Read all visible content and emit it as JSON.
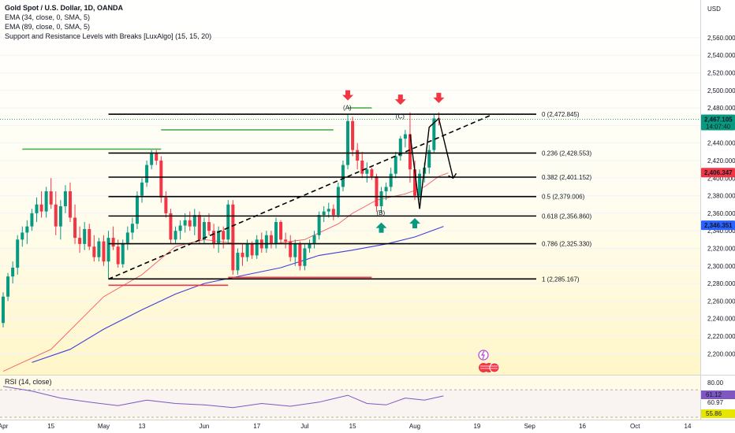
{
  "legend": {
    "title": "Gold Spot / U.S. Dollar, 1D, OANDA",
    "ema1": "EMA (34, close, 0, SMA, 5)",
    "ema2": "EMA (89, close, 0, SMA, 5)",
    "sr": "Support and Resistance Levels with Breaks [LuxAlgo] (15, 15, 20)"
  },
  "rsi_title": "RSI (14, close)",
  "currency": "USD",
  "colors": {
    "up": "#089981",
    "down": "#f23645",
    "ema_fast": "#f23645",
    "ema_slow": "#3f3fd8",
    "support": "#f23645",
    "resistance": "#4caf50",
    "rsi": "#7e57c2"
  },
  "chart_data": {
    "type": "candlestick",
    "symbol": "XAUUSD",
    "timeframe": "1D",
    "price_ticks": [
      "2,560.000",
      "2,540.000",
      "2,520.000",
      "2,500.000",
      "2,480.000",
      "2,460.000",
      "2,440.000",
      "2,420.000",
      "2,400.000",
      "2,380.000",
      "2,360.000",
      "2,340.000",
      "2,320.000",
      "2,300.000",
      "2,280.000",
      "2,260.000",
      "2,240.000",
      "2,220.000",
      "2,200.000"
    ],
    "price_tick_values": [
      2560,
      2540,
      2520,
      2500,
      2480,
      2460,
      2440,
      2420,
      2400,
      2380,
      2360,
      2340,
      2320,
      2300,
      2280,
      2260,
      2240,
      2220,
      2200
    ],
    "ylim": [
      2185,
      2585
    ],
    "time_ticks": [
      {
        "label": "Apr",
        "index": 0
      },
      {
        "label": "15",
        "index": 10
      },
      {
        "label": "May",
        "index": 21
      },
      {
        "label": "13",
        "index": 29
      },
      {
        "label": "Jun",
        "index": 42
      },
      {
        "label": "17",
        "index": 53
      },
      {
        "label": "Jul",
        "index": 63
      },
      {
        "label": "15",
        "index": 73
      },
      {
        "label": "Aug",
        "index": 86
      },
      {
        "label": "19",
        "index": 99
      },
      {
        "label": "Sep",
        "index": 110
      },
      {
        "label": "16",
        "index": 121
      },
      {
        "label": "Oct",
        "index": 132
      },
      {
        "label": "14",
        "index": 143
      }
    ],
    "candles": [
      [
        2235,
        2270,
        2230,
        2265
      ],
      [
        2265,
        2292,
        2260,
        2288
      ],
      [
        2288,
        2305,
        2280,
        2298
      ],
      [
        2298,
        2335,
        2290,
        2330
      ],
      [
        2330,
        2345,
        2322,
        2338
      ],
      [
        2338,
        2352,
        2325,
        2345
      ],
      [
        2345,
        2365,
        2340,
        2360
      ],
      [
        2360,
        2378,
        2350,
        2370
      ],
      [
        2370,
        2385,
        2355,
        2362
      ],
      [
        2362,
        2390,
        2355,
        2385
      ],
      [
        2385,
        2400,
        2365,
        2370
      ],
      [
        2370,
        2385,
        2335,
        2345
      ],
      [
        2345,
        2375,
        2330,
        2368
      ],
      [
        2368,
        2392,
        2360,
        2385
      ],
      [
        2385,
        2395,
        2350,
        2355
      ],
      [
        2355,
        2370,
        2325,
        2332
      ],
      [
        2332,
        2345,
        2315,
        2325
      ],
      [
        2325,
        2350,
        2318,
        2342
      ],
      [
        2342,
        2348,
        2318,
        2322
      ],
      [
        2322,
        2335,
        2305,
        2310
      ],
      [
        2310,
        2332,
        2305,
        2328
      ],
      [
        2328,
        2335,
        2300,
        2305
      ],
      [
        2305,
        2340,
        2285,
        2332
      ],
      [
        2332,
        2345,
        2318,
        2322
      ],
      [
        2322,
        2330,
        2298,
        2302
      ],
      [
        2302,
        2330,
        2298,
        2326
      ],
      [
        2326,
        2345,
        2318,
        2338
      ],
      [
        2338,
        2355,
        2330,
        2348
      ],
      [
        2348,
        2385,
        2342,
        2380
      ],
      [
        2380,
        2400,
        2372,
        2395
      ],
      [
        2395,
        2420,
        2390,
        2415
      ],
      [
        2415,
        2432,
        2410,
        2428
      ],
      [
        2428,
        2432,
        2415,
        2420
      ],
      [
        2420,
        2425,
        2372,
        2378
      ],
      [
        2378,
        2385,
        2355,
        2360
      ],
      [
        2360,
        2365,
        2325,
        2330
      ],
      [
        2330,
        2345,
        2325,
        2340
      ],
      [
        2340,
        2352,
        2330,
        2346
      ],
      [
        2346,
        2360,
        2338,
        2352
      ],
      [
        2352,
        2362,
        2340,
        2345
      ],
      [
        2345,
        2365,
        2335,
        2358
      ],
      [
        2358,
        2362,
        2325,
        2330
      ],
      [
        2330,
        2355,
        2325,
        2350
      ],
      [
        2350,
        2360,
        2335,
        2340
      ],
      [
        2340,
        2348,
        2320,
        2325
      ],
      [
        2325,
        2345,
        2315,
        2340
      ],
      [
        2340,
        2345,
        2320,
        2330
      ],
      [
        2330,
        2375,
        2325,
        2370
      ],
      [
        2370,
        2375,
        2290,
        2295
      ],
      [
        2295,
        2320,
        2290,
        2315
      ],
      [
        2315,
        2325,
        2300,
        2310
      ],
      [
        2310,
        2330,
        2305,
        2325
      ],
      [
        2325,
        2328,
        2308,
        2312
      ],
      [
        2312,
        2335,
        2308,
        2330
      ],
      [
        2330,
        2338,
        2315,
        2320
      ],
      [
        2320,
        2340,
        2315,
        2335
      ],
      [
        2335,
        2340,
        2320,
        2325
      ],
      [
        2325,
        2355,
        2320,
        2350
      ],
      [
        2350,
        2352,
        2325,
        2330
      ],
      [
        2330,
        2338,
        2320,
        2328
      ],
      [
        2328,
        2335,
        2305,
        2310
      ],
      [
        2310,
        2330,
        2300,
        2325
      ],
      [
        2325,
        2328,
        2295,
        2300
      ],
      [
        2300,
        2325,
        2295,
        2320
      ],
      [
        2320,
        2330,
        2315,
        2325
      ],
      [
        2325,
        2340,
        2320,
        2335
      ],
      [
        2335,
        2362,
        2330,
        2358
      ],
      [
        2358,
        2368,
        2350,
        2362
      ],
      [
        2362,
        2372,
        2355,
        2365
      ],
      [
        2365,
        2370,
        2352,
        2358
      ],
      [
        2358,
        2395,
        2355,
        2390
      ],
      [
        2390,
        2420,
        2385,
        2415
      ],
      [
        2415,
        2472,
        2410,
        2465
      ],
      [
        2465,
        2470,
        2425,
        2432
      ],
      [
        2432,
        2440,
        2410,
        2420
      ],
      [
        2420,
        2430,
        2400,
        2405
      ],
      [
        2405,
        2418,
        2395,
        2410
      ],
      [
        2410,
        2412,
        2398,
        2402
      ],
      [
        2402,
        2405,
        2362,
        2368
      ],
      [
        2368,
        2390,
        2360,
        2385
      ],
      [
        2385,
        2395,
        2375,
        2390
      ],
      [
        2390,
        2412,
        2385,
        2405
      ],
      [
        2405,
        2430,
        2400,
        2425
      ],
      [
        2425,
        2448,
        2420,
        2445
      ],
      [
        2445,
        2455,
        2435,
        2450
      ],
      [
        2450,
        2475,
        2395,
        2410
      ],
      [
        2410,
        2420,
        2375,
        2380
      ],
      [
        2380,
        2410,
        2375,
        2405
      ],
      [
        2405,
        2418,
        2395,
        2412
      ],
      [
        2412,
        2438,
        2405,
        2432
      ],
      [
        2432,
        2472,
        2428,
        2468
      ],
      [
        2468,
        2475,
        2460,
        2467
      ]
    ],
    "ema_fast_points": [
      [
        0,
        2180
      ],
      [
        10,
        2205
      ],
      [
        21,
        2265
      ],
      [
        29,
        2290
      ],
      [
        36,
        2322
      ],
      [
        42,
        2330
      ],
      [
        48,
        2326
      ],
      [
        56,
        2325
      ],
      [
        63,
        2330
      ],
      [
        70,
        2348
      ],
      [
        73,
        2360
      ],
      [
        78,
        2375
      ],
      [
        84,
        2382
      ],
      [
        88,
        2390
      ],
      [
        91,
        2402
      ],
      [
        93,
        2406
      ]
    ],
    "ema_slow_points": [
      [
        6,
        2190
      ],
      [
        14,
        2205
      ],
      [
        21,
        2228
      ],
      [
        29,
        2250
      ],
      [
        36,
        2268
      ],
      [
        42,
        2280
      ],
      [
        50,
        2289
      ],
      [
        58,
        2298
      ],
      [
        66,
        2312
      ],
      [
        73,
        2318
      ],
      [
        80,
        2325
      ],
      [
        86,
        2333
      ],
      [
        92,
        2345
      ]
    ],
    "fib_levels": [
      {
        "label": "0 (2,472.845)",
        "value": 2472.845
      },
      {
        "label": "0.236 (2,428.553)",
        "value": 2428.553
      },
      {
        "label": "0.382 (2,401.152)",
        "value": 2401.152
      },
      {
        "label": "0.5 (2,379.006)",
        "value": 2379.006
      },
      {
        "label": "0.618 (2,356.860)",
        "value": 2356.86
      },
      {
        "label": "0.786 (2,325.330)",
        "value": 2325.33
      },
      {
        "label": "1 (2,285.167)",
        "value": 2285.167
      }
    ],
    "resistance_lines": [
      {
        "from": 4,
        "to": 33,
        "value": 2433
      },
      {
        "from": 33,
        "to": 69,
        "value": 2455
      },
      {
        "from": 72,
        "to": 77,
        "value": 2480
      }
    ],
    "support_lines": [
      {
        "from": 22,
        "to": 47,
        "value": 2278
      },
      {
        "from": 47,
        "to": 77,
        "value": 2287
      }
    ],
    "trendline": [
      [
        22,
        2285
      ],
      [
        102,
        2472
      ]
    ],
    "pattern_labels": [
      {
        "text": "(A)",
        "index": 72,
        "value": 2478
      },
      {
        "text": "(B)",
        "index": 79,
        "value": 2358
      },
      {
        "text": "(C)",
        "index": 83,
        "value": 2468
      }
    ],
    "down_arrows": [
      [
        72,
        2493
      ],
      [
        83,
        2488
      ],
      [
        91,
        2490
      ]
    ],
    "up_arrows": [
      [
        79,
        2345
      ],
      [
        86,
        2350
      ]
    ],
    "projection": [
      [
        85,
        2450
      ],
      [
        87,
        2365
      ],
      [
        89,
        2458
      ],
      [
        91,
        2468
      ],
      [
        94,
        2400
      ]
    ],
    "price_labels": [
      {
        "text": "2,467.105",
        "sub": "14:07:40",
        "value": 2467.105,
        "color": "#089981"
      },
      {
        "text": "2,406.347",
        "value": 2406.347,
        "color": "#f23645"
      },
      {
        "text": "2,346.351",
        "value": 2346.351,
        "color": "#2962ff"
      }
    ],
    "rsi": {
      "ticks": [
        "80.00",
        "60.97"
      ],
      "labels": [
        {
          "text": "61.12",
          "color": "#7e57c2"
        },
        {
          "text": "55.86",
          "color": "#e6e600"
        }
      ],
      "ylim": [
        30,
        85
      ],
      "upper": 70,
      "lower": 30,
      "points": [
        [
          0,
          75
        ],
        [
          6,
          68
        ],
        [
          12,
          58
        ],
        [
          18,
          52
        ],
        [
          24,
          47
        ],
        [
          30,
          55
        ],
        [
          36,
          50
        ],
        [
          42,
          48
        ],
        [
          48,
          44
        ],
        [
          54,
          50
        ],
        [
          60,
          46
        ],
        [
          66,
          52
        ],
        [
          72,
          62
        ],
        [
          76,
          50
        ],
        [
          80,
          48
        ],
        [
          84,
          58
        ],
        [
          88,
          55
        ],
        [
          92,
          61
        ]
      ]
    }
  }
}
